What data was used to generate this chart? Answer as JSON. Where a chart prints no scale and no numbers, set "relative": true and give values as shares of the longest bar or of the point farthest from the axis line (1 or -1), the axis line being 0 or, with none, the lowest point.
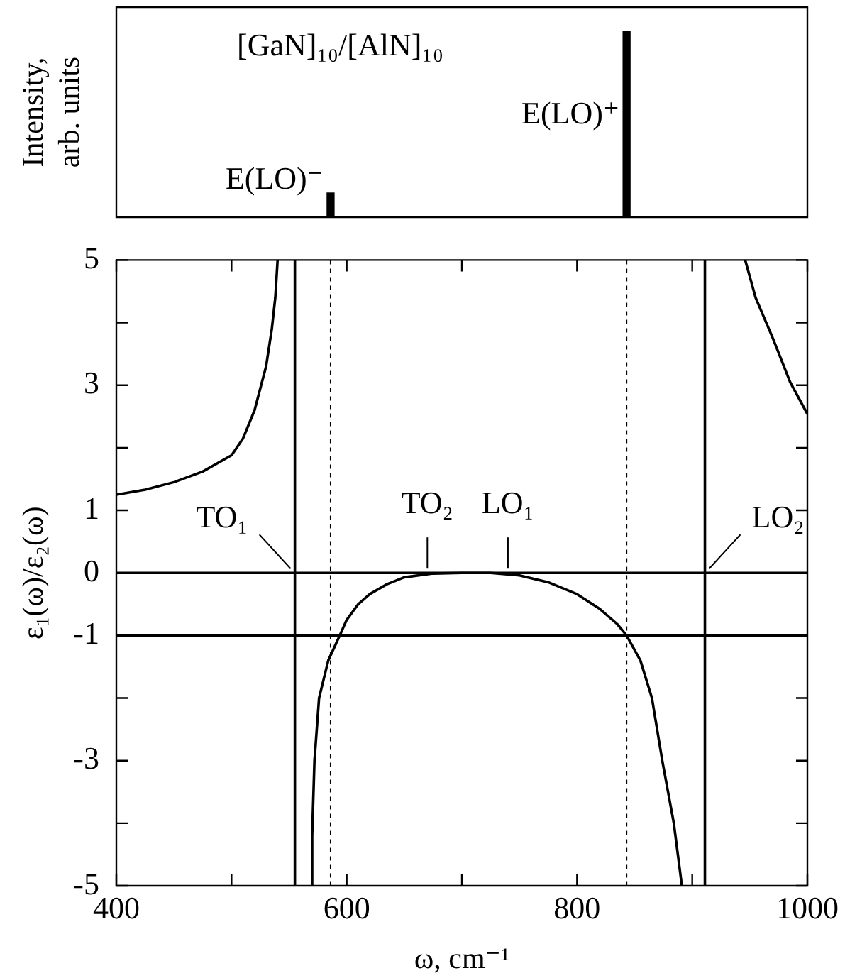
{
  "chart_data": [
    {
      "type": "bar",
      "ylabel": "Intensity, arb. units",
      "relative": true,
      "x": [
        586,
        843
      ],
      "values": [
        0.13,
        1
      ],
      "color": "#000000",
      "xlim": [
        400,
        1000
      ],
      "grid": false,
      "legend": false,
      "annotations": [
        "[GaN]₁₀/[AlN]₁₀",
        {
          "text": "E(LO)⁻",
          "x": 586,
          "y": 0.13
        },
        {
          "text": "E(LO)⁺",
          "x": 843,
          "y": 0.48
        }
      ]
    },
    {
      "type": "line",
      "xlabel": "ω, cm⁻¹",
      "ylabel": "ε₁(ω)/ε₂(ω)",
      "xlim": [
        400,
        1000
      ],
      "xticks": [
        400,
        {
          "value": 500,
          "label": null
        },
        600,
        {
          "value": 700,
          "label": null
        },
        800,
        {
          "value": 900,
          "label": null
        },
        1000
      ],
      "ylim": [
        -5,
        5
      ],
      "yticks": [
        5,
        {
          "value": 4,
          "label": null
        },
        3,
        {
          "value": 2,
          "label": null
        },
        1,
        0,
        -1,
        {
          "value": -2,
          "label": null
        },
        -3,
        {
          "value": -4,
          "label": null
        },
        -5
      ],
      "grid": false,
      "legend": false,
      "marker": "none",
      "series": [
        {
          "color": "#000000",
          "x": [
            400,
            425,
            450,
            475,
            500,
            510,
            520,
            530,
            535,
            538,
            540
          ],
          "values": [
            1.25,
            1.33,
            1.45,
            1.62,
            1.88,
            2.15,
            2.6,
            3.3,
            3.9,
            4.4,
            5
          ]
        },
        {
          "color": "#000000",
          "x": [
            569,
            570,
            572,
            576,
            584,
            594,
            600,
            610,
            620,
            635,
            650,
            675,
            700,
            725,
            750,
            775,
            800,
            820,
            835,
            843,
            855,
            865,
            874,
            884,
            891
          ],
          "values": [
            -5,
            -4.2,
            -3,
            -2,
            -1.4,
            -1,
            -0.75,
            -0.5,
            -0.34,
            -0.18,
            -0.07,
            -0.01,
            0,
            0,
            -0.04,
            -0.15,
            -0.34,
            -0.58,
            -0.82,
            -1,
            -1.4,
            -2,
            -3,
            -4,
            -5
          ]
        },
        {
          "color": "#000000",
          "x": [
            946,
            955,
            970,
            985,
            1000
          ],
          "values": [
            5,
            4.4,
            3.75,
            3.05,
            2.54
          ]
        }
      ],
      "ref_lines": [
        {
          "axis": "y",
          "value": 0,
          "color": "#000000"
        },
        {
          "axis": "y",
          "value": -1,
          "color": "#000000"
        },
        {
          "axis": "x",
          "value": 555,
          "color": "#000000"
        },
        {
          "axis": "x",
          "value": 911,
          "color": "#000000"
        },
        {
          "axis": "x",
          "value": 586,
          "color": "#000000",
          "line_style": "dashed"
        },
        {
          "axis": "x",
          "value": 843,
          "color": "#000000",
          "line_style": "dashed"
        }
      ],
      "annotations": [
        {
          "text": "TO₁",
          "x": 555,
          "y": 0
        },
        {
          "text": "TO₂",
          "x": 670,
          "y": 0
        },
        {
          "text": "LO₁",
          "x": 740,
          "y": 0
        },
        {
          "text": "LO₂",
          "x": 911,
          "y": 0
        }
      ]
    }
  ]
}
